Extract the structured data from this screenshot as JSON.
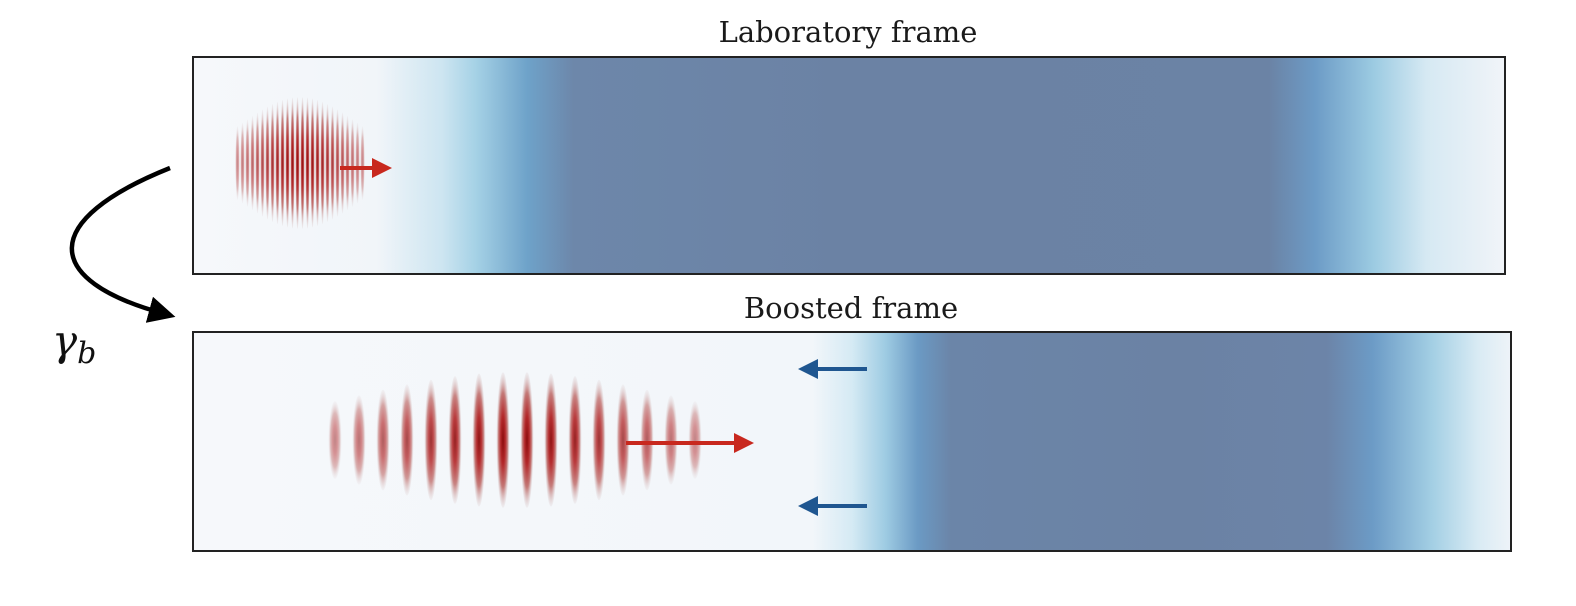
{
  "lab_frame": {
    "title": "Laboratory frame"
  },
  "boosted_frame": {
    "title": "Boosted frame"
  },
  "transform": {
    "symbol": "γ",
    "subscript": "b"
  },
  "colors": {
    "plasma": "#6b82a4",
    "plasma_edge": "#a9d4e8",
    "laser": "#b22222",
    "laser_arrow": "#c8281e",
    "plasma_arrow": "#1f5690",
    "frame_border": "#222222",
    "background": "#f6f8fb"
  }
}
